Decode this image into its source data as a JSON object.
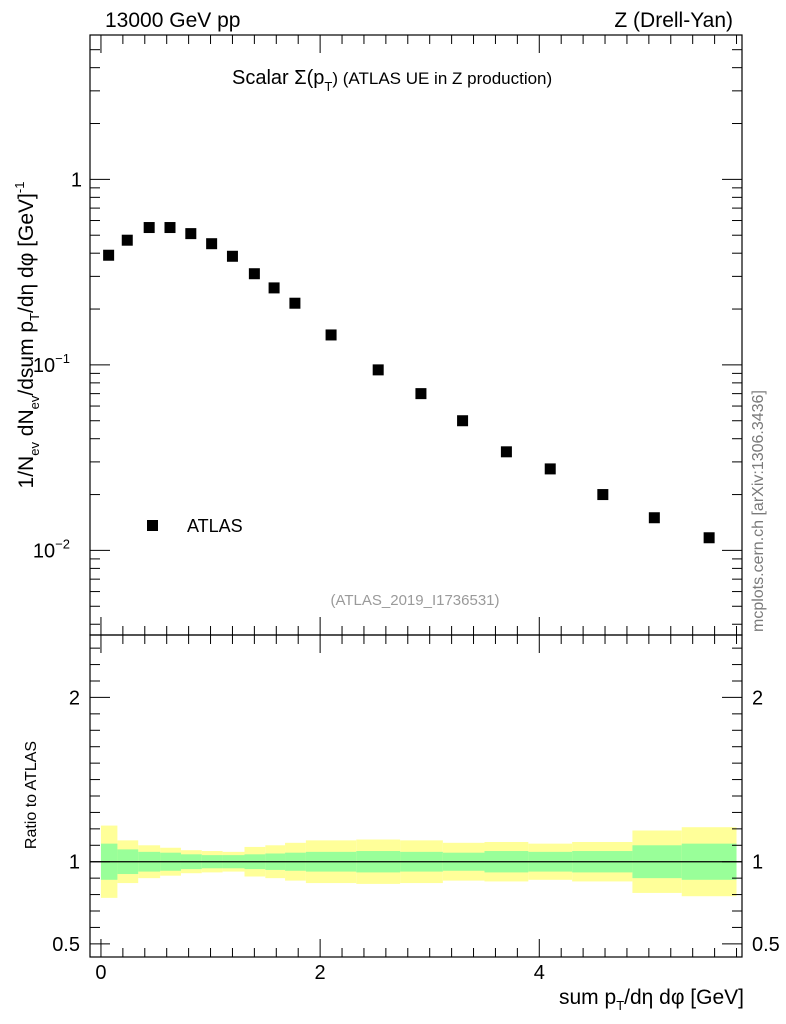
{
  "header": {
    "left": "13000 GeV pp",
    "right": "Z (Drell-Yan)"
  },
  "side_label": "mcplots.cern.ch [arXiv:1306.3436]",
  "analysis_tag": "(ATLAS_2019_I1736531)",
  "chart_data": [
    {
      "type": "scatter",
      "title_main": "Scalar Σ(p",
      "title_sub": "T",
      "title_rest": ")  (ATLAS UE in Z production)",
      "ylabel": "1/N_ev dN_ev/dsum p_T/dη dφ  [GeV]^-1",
      "yscale": "log",
      "ylim": [
        0.0035,
        6.0
      ],
      "xlim": [
        -0.1,
        5.85
      ],
      "y_ticks": [
        {
          "value": 1,
          "label": "1"
        },
        {
          "value": 0.1,
          "label": "10",
          "exp": "−1"
        },
        {
          "value": 0.01,
          "label": "10",
          "exp": "−2"
        }
      ],
      "legend": {
        "position": "bottom-left",
        "label": "ATLAS"
      },
      "series": [
        {
          "name": "ATLAS",
          "marker": "square",
          "color": "#000000",
          "x": [
            0.07,
            0.24,
            0.44,
            0.63,
            0.82,
            1.01,
            1.2,
            1.4,
            1.58,
            1.77,
            2.1,
            2.53,
            2.92,
            3.3,
            3.7,
            4.1,
            4.58,
            5.05,
            5.55
          ],
          "y": [
            0.39,
            0.47,
            0.55,
            0.55,
            0.51,
            0.45,
            0.385,
            0.31,
            0.26,
            0.215,
            0.145,
            0.094,
            0.07,
            0.05,
            0.034,
            0.0275,
            0.02,
            0.015,
            0.0117
          ]
        }
      ]
    },
    {
      "type": "area",
      "ylabel": "Ratio to ATLAS",
      "xlabel": "sum p_T/dη dφ [GeV]",
      "ylim": [
        0.42,
        2.38
      ],
      "xlim": [
        -0.1,
        5.85
      ],
      "x_ticks": [
        {
          "value": 0,
          "label": "0"
        },
        {
          "value": 2,
          "label": "2"
        },
        {
          "value": 4,
          "label": "4"
        }
      ],
      "y_ticks": [
        {
          "value": 0.5,
          "label": "0.5"
        },
        {
          "value": 1,
          "label": "1"
        },
        {
          "value": 2,
          "label": "2"
        }
      ],
      "reference_line": 1,
      "bin_edges": [
        0,
        0.15,
        0.34,
        0.54,
        0.73,
        0.92,
        1.11,
        1.31,
        1.5,
        1.68,
        1.87,
        2.33,
        2.73,
        3.12,
        3.5,
        3.9,
        4.3,
        4.85,
        5.3,
        5.8
      ],
      "bands": [
        {
          "name": "stat",
          "color": "#99ff99",
          "half_width": [
            0.11,
            0.075,
            0.06,
            0.055,
            0.045,
            0.04,
            0.04,
            0.045,
            0.05,
            0.055,
            0.06,
            0.065,
            0.06,
            0.055,
            0.065,
            0.06,
            0.065,
            0.1,
            0.11
          ]
        },
        {
          "name": "total",
          "color": "#ffff99",
          "half_width": [
            0.22,
            0.13,
            0.1,
            0.085,
            0.07,
            0.065,
            0.06,
            0.09,
            0.1,
            0.115,
            0.13,
            0.135,
            0.13,
            0.115,
            0.12,
            0.11,
            0.12,
            0.19,
            0.21
          ]
        }
      ]
    }
  ]
}
